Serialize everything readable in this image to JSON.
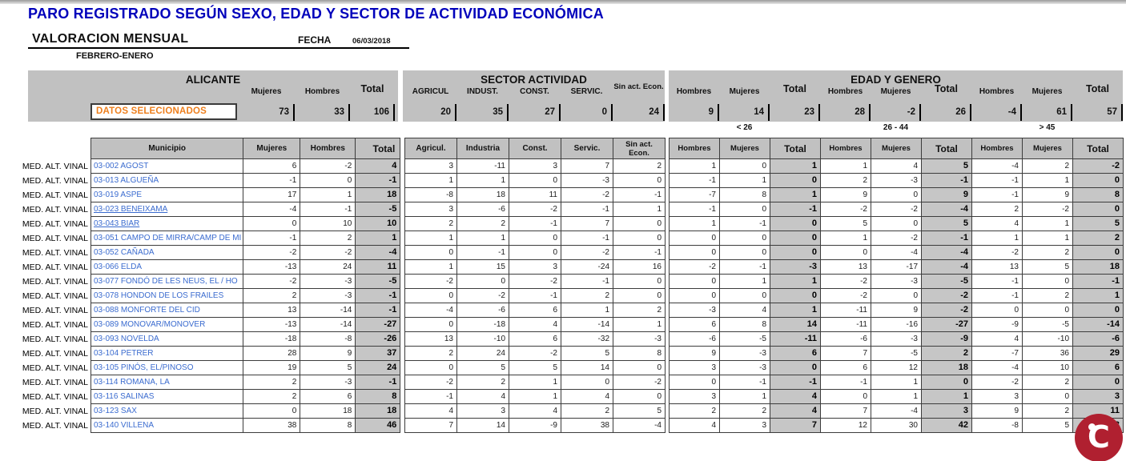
{
  "colors": {
    "accent_blue": "#0000BB",
    "link_blue": "#3A6BCF",
    "orange": "#EE7F1D",
    "band_gray": "#C1C1C1",
    "logo_red": "#B02030"
  },
  "header": {
    "title": "PARO REGISTRADO SEGÚN SEXO, EDAD Y SECTOR DE ACTIVIDAD ECONÓMICA",
    "subtitle": "VALORACION MENSUAL",
    "fecha_label": "FECHA",
    "fecha_value": "06/03/2018",
    "period": "FEBRERO-ENERO"
  },
  "selected_row": {
    "label": "DATOS SELECIONADOS",
    "alicante": [
      73,
      33,
      106
    ],
    "sector": [
      20,
      35,
      27,
      0,
      24
    ],
    "edad": [
      9,
      14,
      23,
      28,
      -2,
      26,
      -4,
      61,
      57
    ]
  },
  "alicante": {
    "title": "ALICANTE",
    "band_cols": [
      "Mujeres",
      "Hombres",
      "Total"
    ],
    "table_cols": [
      "Municipio",
      "Mujeres",
      "Hombres",
      "Total"
    ]
  },
  "sector": {
    "title": "SECTOR ACTIVIDAD",
    "band_cols": [
      "AGRICUL",
      "INDUST.",
      "CONST.",
      "SERVIC.",
      "Sin act. Econ."
    ],
    "table_cols": [
      "Agricul.",
      "Industria",
      "Const.",
      "Servic.",
      "Sin act. Econ."
    ]
  },
  "edad": {
    "title": "EDAD Y GENERO",
    "band_cols": [
      "Hombres",
      "Mujeres",
      "Total",
      "Hombres",
      "Mujeres",
      "Total",
      "Hombres",
      "Mujeres",
      "Total"
    ],
    "age_groups": [
      "< 26",
      "26 - 44",
      "> 45"
    ]
  },
  "row_label": "MED. ALT. VINAL",
  "rows": [
    {
      "municipio": "03-002 AGOST",
      "underlined": false,
      "alicante": [
        6,
        -2,
        4
      ],
      "sector": [
        3,
        -11,
        3,
        7,
        2
      ],
      "edad": [
        1,
        0,
        1,
        1,
        4,
        5,
        -4,
        2,
        -2
      ]
    },
    {
      "municipio": "03-013 ALGUEÑA",
      "underlined": false,
      "alicante": [
        -1,
        0,
        -1
      ],
      "sector": [
        1,
        1,
        0,
        -3,
        0
      ],
      "edad": [
        -1,
        1,
        0,
        2,
        -3,
        -1,
        -1,
        1,
        0
      ]
    },
    {
      "municipio": "03-019 ASPE",
      "underlined": false,
      "alicante": [
        17,
        1,
        18
      ],
      "sector": [
        -8,
        18,
        11,
        -2,
        -1
      ],
      "edad": [
        -7,
        8,
        1,
        9,
        0,
        9,
        -1,
        9,
        8
      ]
    },
    {
      "municipio": "03-023 BENEIXAMA",
      "underlined": true,
      "alicante": [
        -4,
        -1,
        -5
      ],
      "sector": [
        3,
        -6,
        -2,
        -1,
        1
      ],
      "edad": [
        -1,
        0,
        -1,
        -2,
        -2,
        -4,
        2,
        -2,
        0
      ]
    },
    {
      "municipio": "03-043 BIAR",
      "underlined": true,
      "alicante": [
        0,
        10,
        10
      ],
      "sector": [
        2,
        2,
        -1,
        7,
        0
      ],
      "edad": [
        1,
        -1,
        0,
        5,
        0,
        5,
        4,
        1,
        5
      ]
    },
    {
      "municipio": "03-051 CAMPO DE MIRRA/CAMP DE MI",
      "underlined": false,
      "alicante": [
        -1,
        2,
        1
      ],
      "sector": [
        1,
        1,
        0,
        -1,
        0
      ],
      "edad": [
        0,
        0,
        0,
        1,
        -2,
        -1,
        1,
        1,
        2
      ]
    },
    {
      "municipio": "03-052 CAÑADA",
      "underlined": false,
      "alicante": [
        -2,
        -2,
        -4
      ],
      "sector": [
        0,
        -1,
        0,
        -2,
        -1
      ],
      "edad": [
        0,
        0,
        0,
        0,
        -4,
        -4,
        -2,
        2,
        0
      ]
    },
    {
      "municipio": "03-066 ELDA",
      "underlined": false,
      "alicante": [
        -13,
        24,
        11
      ],
      "sector": [
        1,
        15,
        3,
        -24,
        16
      ],
      "edad": [
        -2,
        -1,
        -3,
        13,
        -17,
        -4,
        13,
        5,
        18
      ]
    },
    {
      "municipio": "03-077 FONDÓ DE LES NEUS, EL / HO",
      "underlined": false,
      "alicante": [
        -2,
        -3,
        -5
      ],
      "sector": [
        -2,
        0,
        -2,
        -1,
        0
      ],
      "edad": [
        0,
        1,
        1,
        -2,
        -3,
        -5,
        -1,
        0,
        -1
      ]
    },
    {
      "municipio": "03-078 HONDON DE LOS FRAILES",
      "underlined": false,
      "alicante": [
        2,
        -3,
        -1
      ],
      "sector": [
        0,
        -2,
        -1,
        2,
        0
      ],
      "edad": [
        0,
        0,
        0,
        -2,
        0,
        -2,
        -1,
        2,
        1
      ]
    },
    {
      "municipio": "03-088 MONFORTE DEL CID",
      "underlined": false,
      "alicante": [
        13,
        -14,
        -1
      ],
      "sector": [
        -4,
        -6,
        6,
        1,
        2
      ],
      "edad": [
        -3,
        4,
        1,
        -11,
        9,
        -2,
        0,
        0,
        0
      ]
    },
    {
      "municipio": "03-089 MONOVAR/MONOVER",
      "underlined": false,
      "alicante": [
        -13,
        -14,
        -27
      ],
      "sector": [
        0,
        -18,
        4,
        -14,
        1
      ],
      "edad": [
        6,
        8,
        14,
        -11,
        -16,
        -27,
        -9,
        -5,
        -14
      ]
    },
    {
      "municipio": "03-093 NOVELDA",
      "underlined": false,
      "alicante": [
        -18,
        -8,
        -26
      ],
      "sector": [
        13,
        -10,
        6,
        -32,
        -3
      ],
      "edad": [
        -6,
        -5,
        -11,
        -6,
        -3,
        -9,
        4,
        -10,
        -6
      ]
    },
    {
      "municipio": "03-104 PETRER",
      "underlined": false,
      "alicante": [
        28,
        9,
        37
      ],
      "sector": [
        2,
        24,
        -2,
        5,
        8
      ],
      "edad": [
        9,
        -3,
        6,
        7,
        -5,
        2,
        -7,
        36,
        29
      ]
    },
    {
      "municipio": "03-105 PINÓS, EL/PINOSO",
      "underlined": false,
      "alicante": [
        19,
        5,
        24
      ],
      "sector": [
        0,
        5,
        5,
        14,
        0
      ],
      "edad": [
        3,
        -3,
        0,
        6,
        12,
        18,
        -4,
        10,
        6
      ]
    },
    {
      "municipio": "03-114 ROMANA, LA",
      "underlined": false,
      "alicante": [
        2,
        -3,
        -1
      ],
      "sector": [
        -2,
        2,
        1,
        0,
        -2
      ],
      "edad": [
        0,
        -1,
        -1,
        -1,
        1,
        0,
        -2,
        2,
        0
      ]
    },
    {
      "municipio": "03-116 SALINAS",
      "underlined": false,
      "alicante": [
        2,
        6,
        8
      ],
      "sector": [
        -1,
        4,
        1,
        4,
        0
      ],
      "edad": [
        3,
        1,
        4,
        0,
        1,
        1,
        3,
        0,
        3
      ]
    },
    {
      "municipio": "03-123 SAX",
      "underlined": false,
      "alicante": [
        0,
        18,
        18
      ],
      "sector": [
        4,
        3,
        4,
        2,
        5
      ],
      "edad": [
        2,
        2,
        4,
        7,
        -4,
        3,
        9,
        2,
        11
      ]
    },
    {
      "municipio": "03-140 VILLENA",
      "underlined": false,
      "alicante": [
        38,
        8,
        46
      ],
      "sector": [
        7,
        14,
        -9,
        38,
        -4
      ],
      "edad": [
        4,
        3,
        7,
        12,
        30,
        42,
        -8,
        5,
        -3
      ]
    }
  ],
  "logo": {
    "glyph": "C"
  }
}
